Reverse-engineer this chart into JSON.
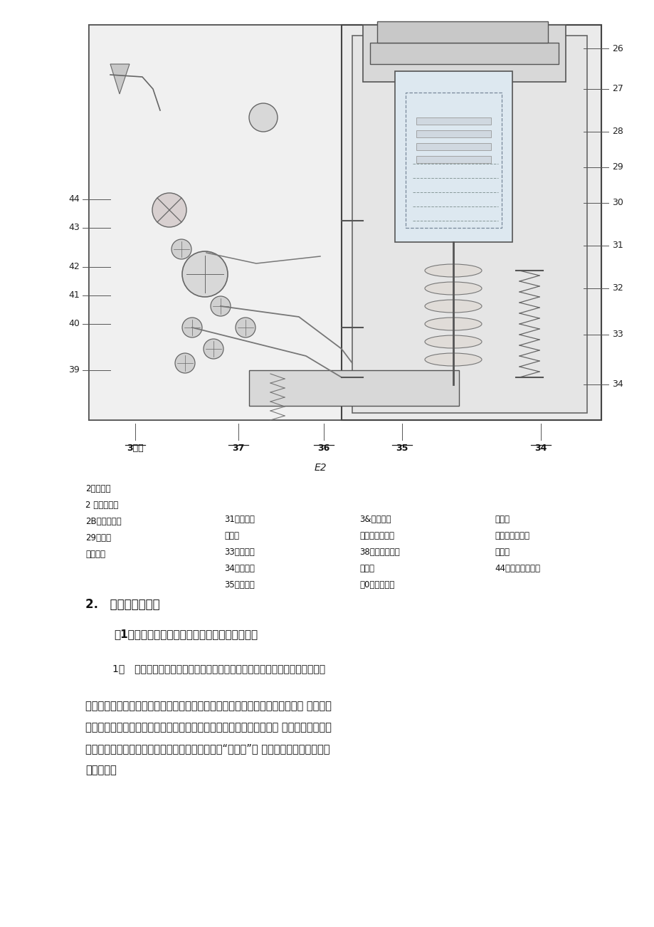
{
  "bg_color": "#ffffff",
  "page_width": 9.2,
  "page_height": 13.02,
  "diagram_label_numbers_right": [
    "26",
    "27",
    "28",
    "29",
    "30",
    "31",
    "32",
    "33",
    "34"
  ],
  "diagram_label_numbers_left": [
    "44",
    "43",
    "42",
    "41",
    "40",
    "39"
  ],
  "e2_label": "E2",
  "legend_col1": [
    "2应上支架",
    "2 了上出蛙座",
    "2B真空瀉机室",
    "29络媒筒",
    "鼠下查架"
  ],
  "legend_col2": [
    "31下出址座",
    "驼础簧",
    "33细缘拉忿",
    "34传动拐臂",
    "35分闸弹笛"
  ],
  "legend_col3": [
    "3&传动连视",
    "盯主轴特动拐臂",
    "38合闸保持墅子",
    "阳连板",
    "斗0分闸由谐锥"
  ],
  "legend_col4": [
    "少半枸",
    "昧手动分闸顶杆",
    "为凸轮",
    "44分合指示牌途梅"
  ],
  "section_title": "2. 实验步驤与内容",
  "subsection_title": "（1）掌握断路器的储能、合闸、分闸操作过程。",
  "step1_title": "1） 储能操作：使用摇把插入手动储能孔中逆时针摇动带动链轮传动系统运动",
  "para_lines": [
    "链轮转动时带动储能轴跟随转动，并通过拐臂拉伸合闸弹簧进行储能。到达储能 位置时，",
    "框架上的限位杆压下滑块使储能轴与链条传动系统脱开，储能保持碎子 顶住滚轮保持储能",
    "位置，同时储能轴上连板带动储能指示牌翻转显示“已储能”标 记，此时断路器处于合闸",
    "准备状态。"
  ]
}
